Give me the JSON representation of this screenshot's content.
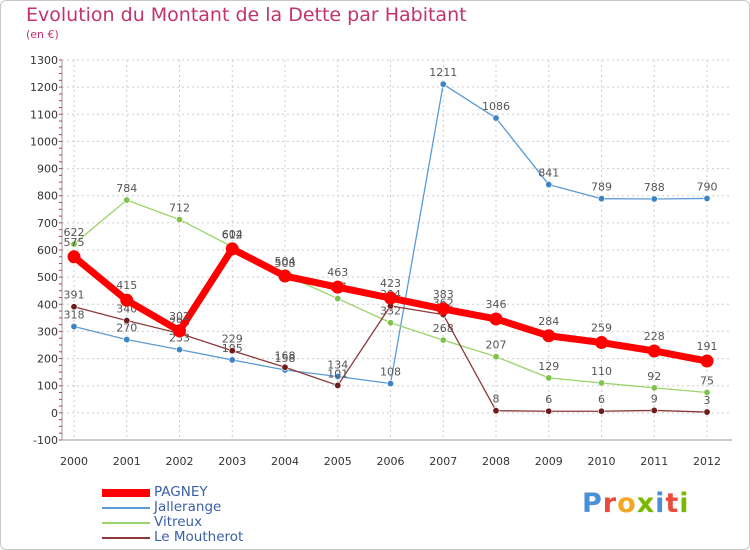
{
  "header": {
    "title": "Evolution du Montant de la Dette par Habitant",
    "unit": "(en €)"
  },
  "logo": {
    "text": "Proxiti",
    "letter_colors": [
      "#4a90d9",
      "#e94b3c",
      "#f5a623",
      "#7ab800",
      "#4a90d9",
      "#e94b3c",
      "#7ab800"
    ]
  },
  "chart_data": {
    "type": "line",
    "x": [
      "2000",
      "2001",
      "2002",
      "2003",
      "2004",
      "2005",
      "2006",
      "2007",
      "2008",
      "2009",
      "2010",
      "2011",
      "2012"
    ],
    "ylim": [
      -100,
      1300
    ],
    "yticks": [
      -100,
      0,
      100,
      200,
      300,
      400,
      500,
      600,
      700,
      800,
      900,
      1000,
      1100,
      1200,
      1300
    ],
    "grid": true,
    "legend_position": "bottom-left",
    "series": [
      {
        "name": "Jallerange",
        "color": "#5b9bd5",
        "marker": "#3d84c6",
        "values": [
          318,
          270,
          233,
          195,
          158,
          134,
          108,
          1211,
          1086,
          841,
          789,
          788,
          790
        ]
      },
      {
        "name": "Vitreux",
        "color": "#9bd46a",
        "marker": "#7ec24a",
        "values": [
          622,
          784,
          712,
          612,
          508,
          421,
          332,
          268,
          207,
          129,
          110,
          92,
          75
        ]
      },
      {
        "name": "Le Moutherot",
        "color": "#8b3a3a",
        "marker": "#6e1c1c",
        "values": [
          391,
          340,
          293,
          229,
          168,
          101,
          394,
          362,
          8,
          6,
          6,
          9,
          3
        ]
      },
      {
        "name": "PAGNEY",
        "color": "#ff0000",
        "marker": "#ff0000",
        "values": [
          575,
          415,
          302,
          604,
          504,
          463,
          423,
          383,
          346,
          284,
          259,
          228,
          191
        ]
      }
    ],
    "legend_order": [
      "PAGNEY",
      "Jallerange",
      "Vitreux",
      "Le Moutherot"
    ]
  }
}
